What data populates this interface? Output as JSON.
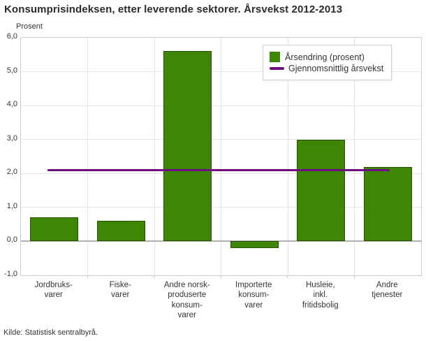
{
  "title": "Konsumprisindeksen, etter leverende sektorer. Årsvekst 2012-2013",
  "axis_title": "Prosent",
  "source": "Kilde: Statistisk sentralbyrå.",
  "legend": {
    "bar_label": "Årsendring (prosent)",
    "line_label": "Gjennomsnittlig årsvekst"
  },
  "colors": {
    "bar": "#3e8705",
    "average_line": "#6e0d80",
    "grid": "#e6e6e6",
    "zero_line": "#b0b0b0",
    "frame": "#cccccc",
    "text": "#333333"
  },
  "chart_data": {
    "type": "bar",
    "title": "Konsumprisindeksen, etter leverende sektorer. Årsvekst 2012-2013",
    "ylabel": "Prosent",
    "categories": [
      "Jordbruks-\nvarer",
      "Fiske-\nvarer",
      "Andre norsk-\nproduserte\nkonsum-\nvarer",
      "Importerte\nkonsum-\nvarer",
      "Husleie,\ninkl.\nfritidsbolig",
      "Andre\ntjenester"
    ],
    "series": [
      {
        "name": "Årsendring (prosent)",
        "type": "bar",
        "values": [
          0.7,
          0.6,
          5.6,
          -0.2,
          3.0,
          2.2
        ]
      },
      {
        "name": "Gjennomsnittlig årsvekst",
        "type": "line",
        "value": 2.1
      }
    ],
    "ylim": [
      -1.0,
      6.0
    ],
    "ytick_step": 1.0,
    "ytick_labels": [
      "6,0",
      "5,0",
      "4,0",
      "3,0",
      "2,0",
      "1,0",
      "0,0",
      "-1,0"
    ],
    "grid": true,
    "legend_position": "top-right-inside"
  }
}
